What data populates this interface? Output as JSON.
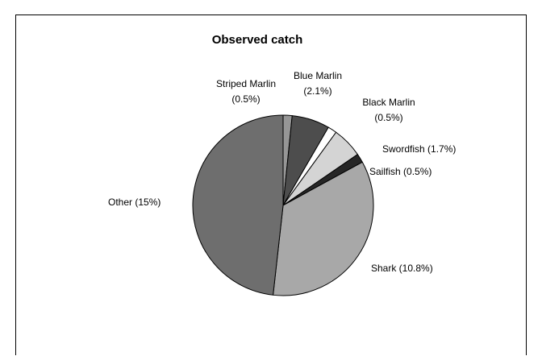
{
  "chart_data": {
    "type": "pie",
    "title": "Observed catch",
    "legend": "none",
    "start_angle_deg": 0,
    "direction": "clockwise",
    "slices": [
      {
        "key": "striped-marlin",
        "label_lines": [
          "Striped Marlin",
          "(0.5%)"
        ],
        "value": 0.5,
        "color": "#969696"
      },
      {
        "key": "blue-marlin",
        "label_lines": [
          "Blue Marlin",
          "(2.1%)"
        ],
        "value": 2.1,
        "color": "#4d4d4d"
      },
      {
        "key": "black-marlin",
        "label_lines": [
          "Black Marlin",
          "(0.5%)"
        ],
        "value": 0.5,
        "color": "#ffffff"
      },
      {
        "key": "swordfish",
        "label_lines": [
          "Swordfish (1.7%)"
        ],
        "value": 1.7,
        "color": "#d4d4d4"
      },
      {
        "key": "sailfish",
        "label_lines": [
          "Sailfish (0.5%)"
        ],
        "value": 0.5,
        "color": "#262626"
      },
      {
        "key": "shark",
        "label_lines": [
          "Shark (10.8%)"
        ],
        "value": 10.8,
        "color": "#a8a8a8"
      },
      {
        "key": "other",
        "label_lines": [
          "Other (15%)"
        ],
        "value": 15,
        "color": "#6e6e6e"
      }
    ]
  }
}
